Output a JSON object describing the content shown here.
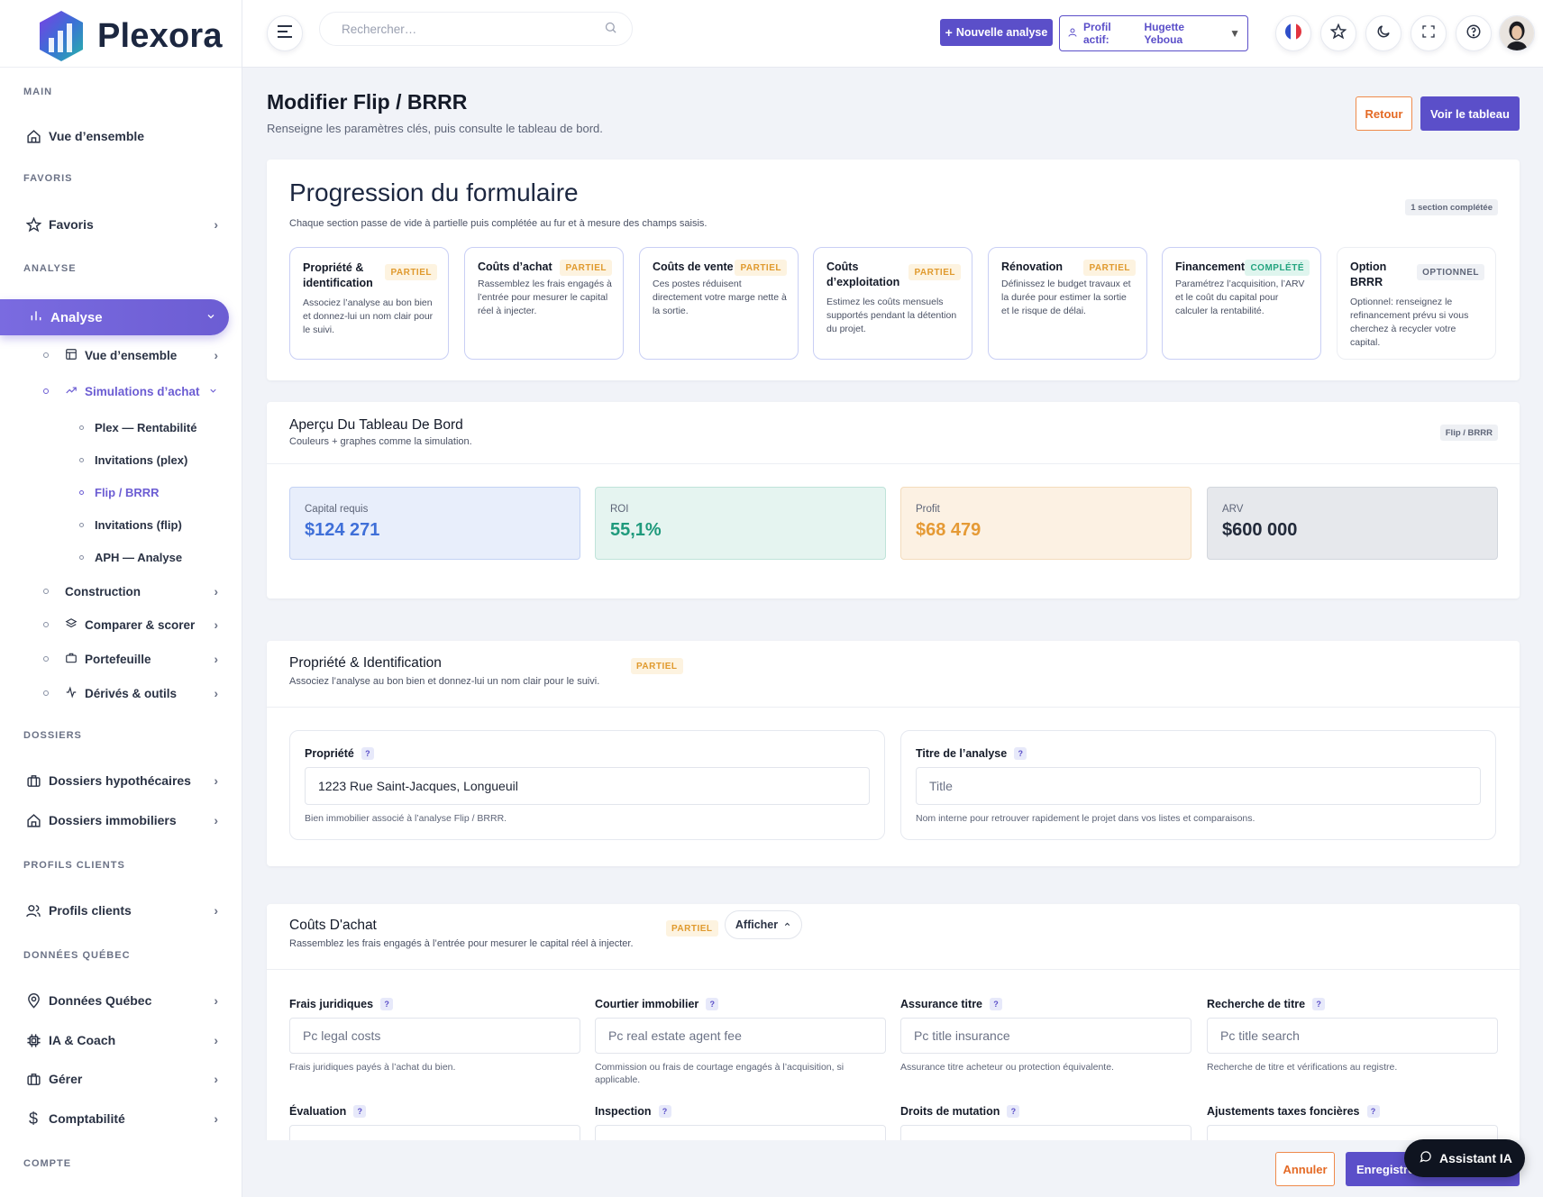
{
  "app": {
    "name": "Plexora"
  },
  "sidebar": {
    "sections": {
      "main": "MAIN",
      "favoris": "FAVORIS",
      "analyse": "ANALYSE",
      "dossiers": "DOSSIERS",
      "profils": "PROFILS CLIENTS",
      "donnees": "DONNÉES QUÉBEC",
      "compte": "COMPTE"
    },
    "items": {
      "vue": "Vue d’ensemble",
      "favoris": "Favoris",
      "analyse": "Analyse",
      "analyse_vue": "Vue d’ensemble",
      "simulations": "Simulations d’achat",
      "plex": "Plex — Rentabilité",
      "inv_plex": "Invitations (plex)",
      "flip": "Flip / BRRR",
      "inv_flip": "Invitations (flip)",
      "aph": "APH — Analyse",
      "construction": "Construction",
      "comparer": "Comparer & scorer",
      "portefeuille": "Portefeuille",
      "derives": "Dérivés & outils",
      "dossiers_hyp": "Dossiers hypothécaires",
      "dossiers_imm": "Dossiers immobiliers",
      "profils": "Profils clients",
      "donnees": "Données Québec",
      "ia": "IA & Coach",
      "gerer": "Gérer",
      "compta": "Comptabilité"
    }
  },
  "topbar": {
    "search_placeholder": "Rechercher…",
    "new_analysis": "Nouvelle analyse",
    "profile_label": "Profil actif:",
    "profile_name": "Hugette Yeboua"
  },
  "page": {
    "title": "Modifier Flip / BRRR",
    "subtitle": "Renseigne les paramètres clés, puis consulte le tableau de bord.",
    "btn_retour": "Retour",
    "btn_voir": "Voir le tableau"
  },
  "progress": {
    "title": "Progression du formulaire",
    "subtitle": "Chaque section passe de vide à partielle puis complétée au fur et à mesure des champs saisis.",
    "badge": "1 section complétée",
    "steps": [
      {
        "title": "Propriété & identification",
        "status": "PARTIEL",
        "desc": "Associez l’analyse au bon bien et donnez-lui un nom clair pour le suivi."
      },
      {
        "title": "Coûts d’achat",
        "status": "PARTIEL",
        "desc": "Rassemblez les frais engagés à l’entrée pour mesurer le capital réel à injecter."
      },
      {
        "title": "Coûts de vente",
        "status": "PARTIEL",
        "desc": "Ces postes réduisent directement votre marge nette à la sortie."
      },
      {
        "title": "Coûts d’exploitation",
        "status": "PARTIEL",
        "desc": "Estimez les coûts mensuels supportés pendant la détention du projet."
      },
      {
        "title": "Rénovation",
        "status": "PARTIEL",
        "desc": "Définissez le budget travaux et la durée pour estimer la sortie et le risque de délai."
      },
      {
        "title": "Financement",
        "status": "COMPLÉTÉ",
        "desc": "Paramétrez l’acquisition, l’ARV et le coût du capital pour calculer la rentabilité."
      },
      {
        "title": "Option BRRR",
        "status": "OPTIONNEL",
        "desc": "Optionnel: renseignez le refinancement prévu si vous cherchez à recycler votre capital."
      }
    ]
  },
  "dashboard": {
    "title": "Aperçu Du Tableau De Bord",
    "subtitle": "Couleurs + graphes comme la simulation.",
    "badge": "Flip / BRRR",
    "kpis": [
      {
        "label": "Capital requis",
        "value": "$124 271",
        "color": "#3f6fd8",
        "bg": "#e8eefb",
        "border": "#c3d2f4"
      },
      {
        "label": "ROI",
        "value": "55,1%",
        "color": "#1f9a7c",
        "bg": "#e5f4f0",
        "border": "#bfe3d9"
      },
      {
        "label": "Profit",
        "value": "$68 479",
        "color": "#e59a35",
        "bg": "#fcf1e3",
        "border": "#f4dcbc"
      },
      {
        "label": "ARV",
        "value": "$600 000",
        "color": "#222a3a",
        "bg": "#e6e8ec",
        "border": "#d2d6dd"
      }
    ]
  },
  "propriete": {
    "title": "Propriété & Identification",
    "subtitle": "Associez l’analyse au bon bien et donnez-lui un nom clair pour le suivi.",
    "status": "PARTIEL",
    "fields": [
      {
        "label": "Propriété",
        "value": "1223 Rue Saint-Jacques, Longueuil",
        "help": "Bien immobilier associé à l’analyse Flip / BRRR."
      },
      {
        "label": "Titre de l’analyse",
        "placeholder": "Title",
        "help": "Nom interne pour retrouver rapidement le projet dans vos listes et comparaisons."
      }
    ]
  },
  "couts": {
    "title": "Coûts D'achat",
    "subtitle": "Rassemblez les frais engagés à l’entrée pour mesurer le capital réel à injecter.",
    "status": "PARTIEL",
    "toggle": "Afficher",
    "fields": [
      {
        "label": "Frais juridiques",
        "placeholder": "Pc legal costs",
        "help": "Frais juridiques payés à l’achat du bien."
      },
      {
        "label": "Courtier immobilier",
        "placeholder": "Pc real estate agent fee",
        "help": "Commission ou frais de courtage engagés à l’acquisition, si applicable."
      },
      {
        "label": "Assurance titre",
        "placeholder": "Pc title insurance",
        "help": "Assurance titre acheteur ou protection équivalente."
      },
      {
        "label": "Recherche de titre",
        "placeholder": "Pc title search",
        "help": "Recherche de titre et vérifications au registre."
      },
      {
        "label": "Évaluation",
        "placeholder": "",
        "help": ""
      },
      {
        "label": "Inspection",
        "placeholder": "",
        "help": ""
      },
      {
        "label": "Droits de mutation",
        "placeholder": "",
        "help": ""
      },
      {
        "label": "Ajustements taxes foncières",
        "placeholder": "",
        "help": ""
      }
    ]
  },
  "footer": {
    "annuler": "Annuler",
    "enregistrer": "Enregistrer",
    "assistant": "Assistant IA"
  }
}
